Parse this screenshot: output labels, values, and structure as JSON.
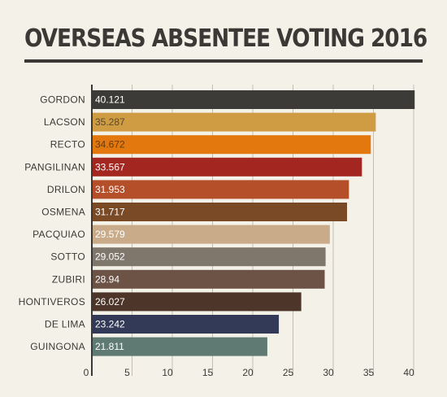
{
  "chart_data": {
    "type": "bar",
    "orientation": "horizontal",
    "title": "OVERSEAS ABSENTEE VOTING 2016",
    "categories": [
      "GORDON",
      "LACSON",
      "RECTO",
      "PANGILINAN",
      "DRILON",
      "OSMENA",
      "PACQUIAO",
      "SOTTO",
      "ZUBIRI",
      "HONTIVEROS",
      "DE LIMA",
      "GUINGONA"
    ],
    "values": [
      40.121,
      35.287,
      34.672,
      33.567,
      31.953,
      31.717,
      29.579,
      29.052,
      28.94,
      26.027,
      23.242,
      21.811
    ],
    "value_labels": [
      "40.121",
      "35.287",
      "34.672",
      "33.567",
      "31.953",
      "31.717",
      "29.579",
      "29.052",
      "28.94",
      "26.027",
      "23.242",
      "21.811"
    ],
    "colors": [
      "#3d3b37",
      "#cf9c44",
      "#e2780e",
      "#a42621",
      "#b44f2a",
      "#7a4a26",
      "#c9ab8a",
      "#7f766c",
      "#6c5345",
      "#4d3529",
      "#333a58",
      "#5f7a72"
    ],
    "value_label_colors": [
      "#ffffff",
      "#5a4a2a",
      "#6a3a10",
      "#ffffff",
      "#ffffff",
      "#ffffff",
      "#ffffff",
      "#ffffff",
      "#ffffff",
      "#ffffff",
      "#ffffff",
      "#ffffff"
    ],
    "xticks": [
      "0",
      "5",
      "10",
      "15",
      "20",
      "25",
      "30",
      "35",
      "40"
    ],
    "xlim": [
      0,
      40
    ],
    "grid": true,
    "legend": "none"
  }
}
